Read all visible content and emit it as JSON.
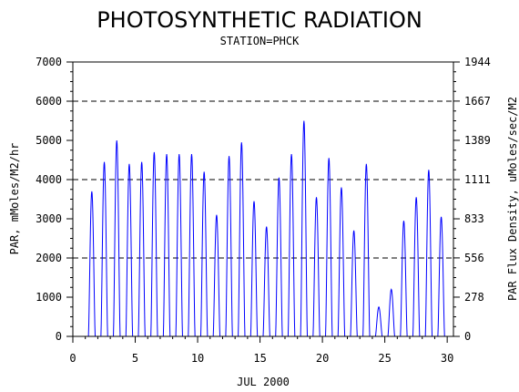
{
  "chart_data": {
    "type": "line",
    "title": "PHOTOSYNTHETIC RADIATION",
    "subtitle": "STATION=PHCK",
    "xlabel": "JUL 2000",
    "ylabel": "PAR, mMoles/M2/hr",
    "y2label": "PAR Flux Density, uMoles/sec/M2",
    "xlim": [
      0,
      30.5
    ],
    "ylim": [
      0,
      7000
    ],
    "y2lim": [
      0,
      1944
    ],
    "x_ticks": [
      0,
      5,
      10,
      15,
      20,
      25,
      30
    ],
    "x_tick_labels": [
      "0",
      "5",
      "10",
      "15",
      "20",
      "25",
      "30"
    ],
    "y_ticks": [
      0,
      1000,
      2000,
      3000,
      4000,
      5000,
      6000,
      7000
    ],
    "y_tick_labels": [
      "0",
      "1000",
      "2000",
      "3000",
      "4000",
      "5000",
      "6000",
      "7000"
    ],
    "y2_ticks": [
      0,
      278,
      556,
      833,
      1111,
      1389,
      1667,
      1944
    ],
    "y2_tick_labels": [
      "0",
      "278",
      "556",
      "833",
      "1111",
      "1389",
      "1667",
      "1944"
    ],
    "gridlines_y": [
      2000,
      4000,
      6000
    ],
    "grid": "dashed horizontal at 2000, 4000, 6000",
    "series": [
      {
        "color": "#0000ff",
        "daily_peaks": [
          {
            "day": 1,
            "peak": 3700
          },
          {
            "day": 2,
            "peak": 4450
          },
          {
            "day": 3,
            "peak": 5000
          },
          {
            "day": 4,
            "peak": 4400
          },
          {
            "day": 5,
            "peak": 4450
          },
          {
            "day": 6,
            "peak": 4700
          },
          {
            "day": 7,
            "peak": 4650
          },
          {
            "day": 8,
            "peak": 4650
          },
          {
            "day": 9,
            "peak": 4650
          },
          {
            "day": 10,
            "peak": 4200
          },
          {
            "day": 11,
            "peak": 3100
          },
          {
            "day": 12,
            "peak": 4600
          },
          {
            "day": 13,
            "peak": 4950
          },
          {
            "day": 14,
            "peak": 3450
          },
          {
            "day": 15,
            "peak": 2800
          },
          {
            "day": 16,
            "peak": 4050
          },
          {
            "day": 17,
            "peak": 4650
          },
          {
            "day": 18,
            "peak": 5500
          },
          {
            "day": 19,
            "peak": 3550
          },
          {
            "day": 20,
            "peak": 4550
          },
          {
            "day": 21,
            "peak": 3800
          },
          {
            "day": 22,
            "peak": 2700
          },
          {
            "day": 23,
            "peak": 4400
          },
          {
            "day": 24,
            "peak": 750
          },
          {
            "day": 25,
            "peak": 1200
          },
          {
            "day": 26,
            "peak": 2950
          },
          {
            "day": 27,
            "peak": 3550
          },
          {
            "day": 28,
            "peak": 4250
          },
          {
            "day": 29,
            "peak": 3050
          }
        ]
      }
    ]
  }
}
